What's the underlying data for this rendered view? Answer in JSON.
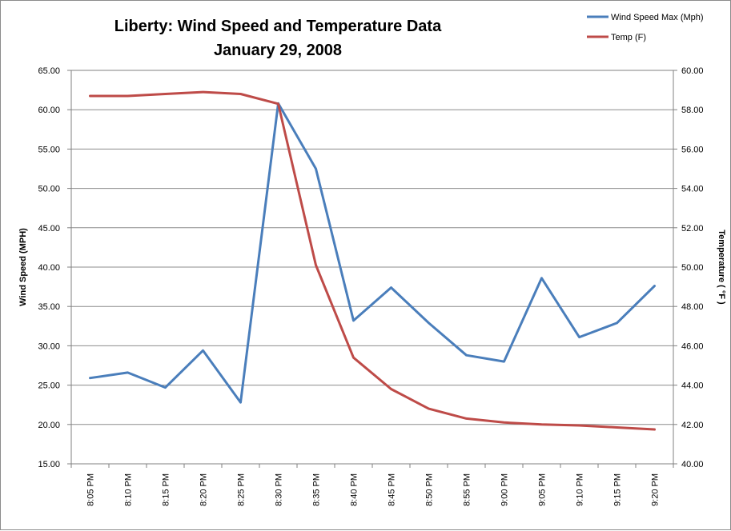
{
  "chart_data": {
    "type": "line",
    "title": "Liberty: Wind Speed and Temperature Data",
    "subtitle": "January 29, 2008",
    "ylabel": "Wind Speed (MPH)",
    "y2label": "Temperature ( °F )",
    "ylim": [
      15,
      65
    ],
    "y2lim": [
      40,
      60
    ],
    "y_ticks": [
      "15.00",
      "20.00",
      "25.00",
      "30.00",
      "35.00",
      "40.00",
      "45.00",
      "50.00",
      "55.00",
      "60.00",
      "65.00"
    ],
    "y2_ticks": [
      "40.00",
      "42.00",
      "44.00",
      "46.00",
      "48.00",
      "50.00",
      "52.00",
      "54.00",
      "56.00",
      "58.00",
      "60.00"
    ],
    "categories": [
      "8:05 PM",
      "8:10 PM",
      "8:15 PM",
      "8:20 PM",
      "8:25 PM",
      "8:30 PM",
      "8:35 PM",
      "8:40 PM",
      "8:45 PM",
      "8:50 PM",
      "8:55 PM",
      "9:00 PM",
      "9:05 PM",
      "9:10 PM",
      "9:15 PM",
      "9:20 PM"
    ],
    "grid": true,
    "legend_position": "top-right",
    "series": [
      {
        "name": "Wind Speed Max (Mph)",
        "axis": "left",
        "color": "#4a7ebb",
        "values": [
          25.9,
          26.6,
          24.7,
          29.4,
          22.8,
          60.8,
          52.5,
          33.2,
          37.4,
          32.9,
          28.8,
          28.0,
          38.6,
          31.1,
          32.9,
          37.6
        ]
      },
      {
        "name": "Temp (F)",
        "axis": "right",
        "color": "#be4b48",
        "values": [
          58.7,
          58.7,
          58.8,
          58.9,
          58.8,
          58.3,
          50.1,
          45.4,
          43.8,
          42.8,
          42.3,
          42.1,
          42.0,
          41.95,
          41.85,
          41.75
        ]
      }
    ]
  }
}
